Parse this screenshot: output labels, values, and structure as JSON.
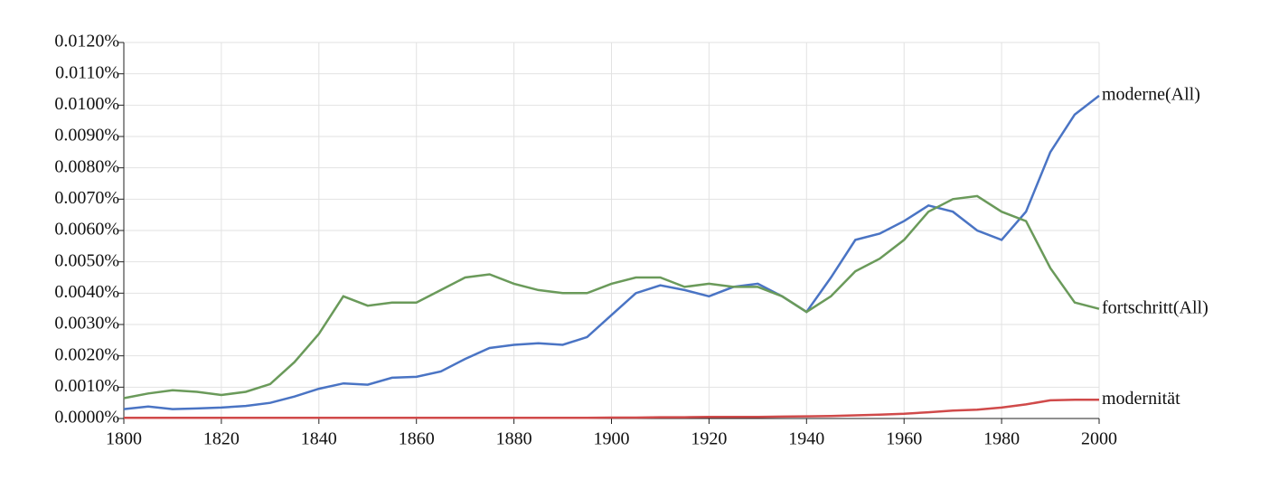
{
  "chart_data": {
    "type": "line",
    "x": [
      1800,
      1805,
      1810,
      1815,
      1820,
      1825,
      1830,
      1835,
      1840,
      1845,
      1850,
      1855,
      1860,
      1865,
      1870,
      1875,
      1880,
      1885,
      1890,
      1895,
      1900,
      1905,
      1910,
      1915,
      1920,
      1925,
      1930,
      1935,
      1940,
      1945,
      1950,
      1955,
      1960,
      1965,
      1970,
      1975,
      1980,
      1985,
      1990,
      1995,
      2000
    ],
    "series": [
      {
        "name": "moderne(All)",
        "color": "#4a74c4",
        "values": [
          0.0003,
          0.00038,
          0.0003,
          0.00032,
          0.00035,
          0.0004,
          0.0005,
          0.0007,
          0.00095,
          0.00112,
          0.00108,
          0.0013,
          0.00133,
          0.0015,
          0.0019,
          0.00225,
          0.00235,
          0.0024,
          0.00235,
          0.0026,
          0.0033,
          0.004,
          0.00425,
          0.0041,
          0.0039,
          0.0042,
          0.0043,
          0.0039,
          0.0034,
          0.0045,
          0.0057,
          0.0059,
          0.0063,
          0.0068,
          0.0066,
          0.006,
          0.0057,
          0.0066,
          0.0085,
          0.0097,
          0.0103
        ]
      },
      {
        "name": "fortschritt(All)",
        "color": "#6a9a5a",
        "values": [
          0.00065,
          0.0008,
          0.0009,
          0.00085,
          0.00075,
          0.00085,
          0.0011,
          0.0018,
          0.0027,
          0.0039,
          0.0036,
          0.0037,
          0.0037,
          0.0041,
          0.0045,
          0.0046,
          0.0043,
          0.0041,
          0.004,
          0.004,
          0.0043,
          0.0045,
          0.0045,
          0.0042,
          0.0043,
          0.0042,
          0.0042,
          0.0039,
          0.0034,
          0.0039,
          0.0047,
          0.0051,
          0.0057,
          0.0066,
          0.007,
          0.0071,
          0.0066,
          0.0063,
          0.0048,
          0.0037,
          0.0035
        ]
      },
      {
        "name": "modernität",
        "color": "#d04a4a",
        "values": [
          2e-05,
          2e-05,
          2e-05,
          2e-05,
          2e-05,
          2e-05,
          2e-05,
          2e-05,
          2e-05,
          2e-05,
          2e-05,
          2e-05,
          2e-05,
          2e-05,
          2e-05,
          2e-05,
          2e-05,
          2e-05,
          2e-05,
          2e-05,
          3e-05,
          3e-05,
          4e-05,
          4e-05,
          5e-05,
          5e-05,
          5e-05,
          6e-05,
          7e-05,
          8e-05,
          0.0001,
          0.00012,
          0.00015,
          0.0002,
          0.00025,
          0.00028,
          0.00035,
          0.00045,
          0.00058,
          0.0006,
          0.0006
        ]
      }
    ],
    "xlim": [
      1800,
      2000
    ],
    "xticks": [
      1800,
      1820,
      1840,
      1860,
      1880,
      1900,
      1920,
      1940,
      1960,
      1980,
      2000
    ],
    "ylim": [
      0,
      0.012
    ],
    "yticks": [
      {
        "value": 0,
        "label": "0.0000%"
      },
      {
        "value": 0.001,
        "label": "0.0010%"
      },
      {
        "value": 0.002,
        "label": "0.0020%"
      },
      {
        "value": 0.003,
        "label": "0.0030%"
      },
      {
        "value": 0.004,
        "label": "0.0040%"
      },
      {
        "value": 0.005,
        "label": "0.0050%"
      },
      {
        "value": 0.006,
        "label": "0.0060%"
      },
      {
        "value": 0.007,
        "label": "0.0070%"
      },
      {
        "value": 0.008,
        "label": "0.0080%"
      },
      {
        "value": 0.009,
        "label": "0.0090%"
      },
      {
        "value": 0.01,
        "label": "0.0100%"
      },
      {
        "value": 0.011,
        "label": "0.0110%"
      },
      {
        "value": 0.012,
        "label": "0.0120%"
      }
    ],
    "grid": true
  }
}
